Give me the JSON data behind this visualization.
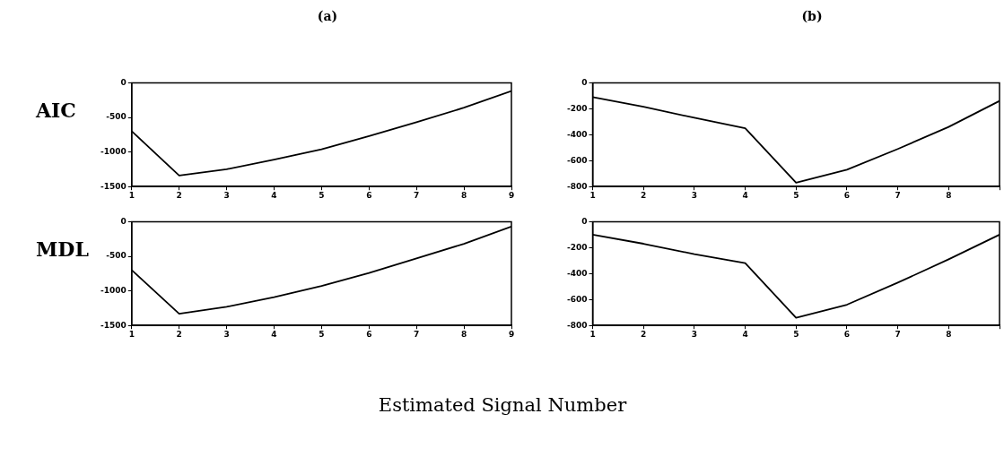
{
  "chart_data": [
    {
      "type": "line",
      "title": "(a)",
      "ylabel": "AIC",
      "x": [
        1,
        2,
        3,
        4,
        5,
        6,
        7,
        8,
        9
      ],
      "series": [
        {
          "color": "#000000",
          "values": [
            -700,
            -1340,
            -1250,
            -1110,
            -960,
            -770,
            -570,
            -360,
            -120
          ]
        }
      ],
      "xlim": [
        1,
        9
      ],
      "xticks": [
        1,
        2,
        3,
        4,
        5,
        6,
        7,
        8,
        9
      ],
      "ylim": [
        -1500,
        0
      ],
      "yticks": [
        -1500,
        -1000,
        -500,
        0
      ],
      "grid": false,
      "legend": false,
      "marker": "none"
    },
    {
      "type": "line",
      "title": "(b)",
      "x": [
        1,
        2,
        3,
        4,
        5,
        6,
        7,
        8,
        9
      ],
      "series": [
        {
          "color": "#000000",
          "values": [
            -110,
            -185,
            -270,
            -350,
            -770,
            -670,
            -510,
            -340,
            -140
          ]
        }
      ],
      "xlim": [
        1,
        9
      ],
      "xticks": [
        1,
        2,
        3,
        4,
        5,
        6,
        7,
        8,
        {
          "value": 9,
          "label": null
        }
      ],
      "ylim": [
        -800,
        0
      ],
      "yticks": [
        -800,
        -600,
        -400,
        -200,
        0
      ],
      "grid": false,
      "legend": false,
      "marker": "none"
    },
    {
      "type": "line",
      "ylabel": "MDL",
      "xlabel": "Estimated Signal Number",
      "x": [
        1,
        2,
        3,
        4,
        5,
        6,
        7,
        8,
        9
      ],
      "series": [
        {
          "color": "#000000",
          "values": [
            -700,
            -1330,
            -1230,
            -1090,
            -930,
            -740,
            -530,
            -320,
            -70
          ]
        }
      ],
      "xlim": [
        1,
        9
      ],
      "xticks": [
        1,
        2,
        3,
        4,
        5,
        6,
        7,
        8,
        9
      ],
      "ylim": [
        -1500,
        0
      ],
      "yticks": [
        -1500,
        -1000,
        -500,
        0
      ],
      "grid": false,
      "legend": false,
      "marker": "none"
    },
    {
      "type": "line",
      "x": [
        1,
        2,
        3,
        4,
        5,
        6,
        7,
        8,
        9
      ],
      "series": [
        {
          "color": "#000000",
          "values": [
            -100,
            -170,
            -250,
            -320,
            -740,
            -640,
            -470,
            -290,
            -100
          ]
        }
      ],
      "xlim": [
        1,
        9
      ],
      "xticks": [
        1,
        2,
        3,
        4,
        5,
        6,
        7,
        8,
        {
          "value": 9,
          "label": null
        }
      ],
      "ylim": [
        -800,
        0
      ],
      "yticks": [
        -800,
        -600,
        -400,
        -200,
        0
      ],
      "grid": false,
      "legend": false,
      "marker": "none"
    }
  ]
}
